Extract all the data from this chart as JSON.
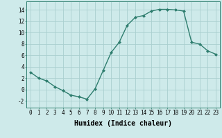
{
  "x": [
    0,
    1,
    2,
    3,
    4,
    5,
    6,
    7,
    8,
    9,
    10,
    11,
    12,
    13,
    14,
    15,
    16,
    17,
    18,
    19,
    20,
    21,
    22,
    23
  ],
  "y": [
    3,
    2,
    1.5,
    0.5,
    -0.2,
    -1.0,
    -1.3,
    -1.7,
    0.1,
    3.3,
    6.5,
    8.3,
    11.3,
    12.7,
    13.0,
    13.8,
    14.1,
    14.1,
    14.0,
    13.8,
    8.3,
    8.0,
    6.8,
    6.2
  ],
  "line_color": "#2e7d6e",
  "marker": "D",
  "marker_size": 2.0,
  "bg_color": "#ceeaea",
  "grid_color": "#aacfcf",
  "xlabel": "Humidex (Indice chaleur)",
  "xlabel_fontsize": 7,
  "xlim": [
    -0.5,
    23.5
  ],
  "ylim": [
    -3.2,
    15.5
  ],
  "yticks": [
    -2,
    0,
    2,
    4,
    6,
    8,
    10,
    12,
    14
  ],
  "xticks": [
    0,
    1,
    2,
    3,
    4,
    5,
    6,
    7,
    8,
    9,
    10,
    11,
    12,
    13,
    14,
    15,
    16,
    17,
    18,
    19,
    20,
    21,
    22,
    23
  ],
  "tick_fontsize": 5.5,
  "linewidth": 1.0
}
